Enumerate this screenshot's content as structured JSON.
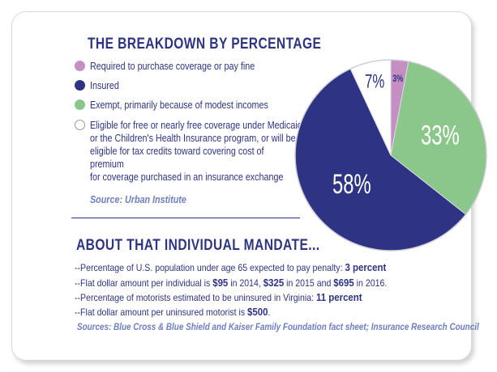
{
  "breakdown": {
    "title": "THE BREAKDOWN BY PERCENTAGE",
    "legend": [
      {
        "label": "Required to purchase coverage or pay fine",
        "color": "#c68fc4"
      },
      {
        "label": "Insured",
        "color": "#2e3483"
      },
      {
        "label": "Exempt, primarily because of modest incomes",
        "color": "#8bc68a"
      },
      {
        "label_lines": [
          "Eligible for free or nearly free coverage under Medicaid",
          "or the Children's Health Insurance program, or will be",
          "eligible for tax credits toward covering cost of",
          "premium",
          "for coverage purchased in an insurance exchange"
        ],
        "color": "#ffffff"
      }
    ],
    "source": "Source: Urban Institute"
  },
  "chart_data": {
    "type": "pie",
    "slices": [
      {
        "value": 3,
        "label": "3%",
        "color": "#c68fc4"
      },
      {
        "value": 33,
        "label": "33%",
        "color": "#8bc68a"
      },
      {
        "value": 58,
        "label": "58%",
        "color": "#2e3483"
      },
      {
        "value": 7,
        "label": "7%",
        "color": "#ffffff"
      }
    ],
    "title": ""
  },
  "mandate": {
    "title": "ABOUT THAT INDIVIDUAL MANDATE...",
    "lines": [
      [
        {
          "t": "--Percentage of U.S. population under age 65 expected to pay penalty: "
        },
        {
          "t": "3 percent",
          "b": true
        }
      ],
      [
        {
          "t": "--Flat dollar amount per individual is "
        },
        {
          "t": "$95",
          "b": true
        },
        {
          "t": " in 2014, "
        },
        {
          "t": "$325",
          "b": true
        },
        {
          "t": " in 2015 and "
        },
        {
          "t": "$695",
          "b": true
        },
        {
          "t": " in 2016."
        }
      ],
      [
        {
          "t": "--Percentage of motorists estimated to be uninsured in Virginia: "
        },
        {
          "t": "11 percent",
          "b": true
        }
      ],
      [
        {
          "t": "--Flat dollar amount per uninsured motorist is "
        },
        {
          "t": "$500",
          "b": true
        },
        {
          "t": "."
        }
      ]
    ],
    "source": "Sources: Blue Cross & Blue Shield and Kaiser Family Foundation fact sheet; Insurance Research Council"
  }
}
